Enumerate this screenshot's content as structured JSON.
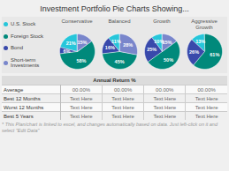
{
  "title": "Investment Portfolio Pie Charts Showing...",
  "series": [
    {
      "name": "U.S. Stock",
      "color": "#26c6da"
    },
    {
      "name": "Foreign Stock",
      "color": "#00897b"
    },
    {
      "name": "Bond",
      "color": "#3949ab"
    },
    {
      "name": "Short-term\nInvestments",
      "color": "#7986cb"
    }
  ],
  "chart_data": [
    {
      "type": "pie",
      "title": "Conservative",
      "categories": [
        "U.S. Stock",
        "Bond",
        "Foreign Stock",
        "Short-term\nInvestments"
      ],
      "values": [
        21,
        6,
        58,
        15
      ],
      "value_labels": [
        "21%",
        "6%",
        "58%",
        "15%"
      ],
      "colors": [
        "#26c6da",
        "#3949ab",
        "#00897b",
        "#7986cb"
      ],
      "data_labels": true
    },
    {
      "type": "pie",
      "title": "Balanced",
      "categories": [
        "U.S. Stock",
        "Bond",
        "Foreign Stock",
        "Short-term\nInvestments"
      ],
      "values": [
        11,
        16,
        45,
        28
      ],
      "value_labels": [
        "11%",
        "16%",
        "45%",
        "28%"
      ],
      "colors": [
        "#26c6da",
        "#3949ab",
        "#00897b",
        "#7986cb"
      ],
      "data_labels": true
    },
    {
      "type": "pie",
      "title": "Growth",
      "categories": [
        "U.S. Stock",
        "Bond",
        "Foreign Stock",
        "Short-term\nInvestments"
      ],
      "values": [
        10,
        25,
        50,
        15
      ],
      "value_labels": [
        "10%",
        "25%",
        "50%",
        "15%"
      ],
      "colors": [
        "#26c6da",
        "#3949ab",
        "#00897b",
        "#7986cb"
      ],
      "data_labels": true
    },
    {
      "type": "pie",
      "title": "Aggressive\nGrowth",
      "categories": [
        "U.S. Stock",
        "Bond",
        "Foreign Stock"
      ],
      "values": [
        13,
        26,
        61
      ],
      "value_labels": [
        "13%",
        "26%",
        "61%"
      ],
      "colors": [
        "#26c6da",
        "#3949ab",
        "#00897b"
      ],
      "data_labels": true
    }
  ],
  "table": {
    "title": "Annual Return %",
    "rows": [
      "Average",
      "Best 12 Months",
      "Worst 12 Months",
      "Best 5 Years"
    ],
    "cells": [
      [
        "00.00%",
        "00.00%",
        "00.00%",
        "00.00%"
      ],
      [
        "Text Here",
        "Text Here",
        "Text Here",
        "Text Here"
      ],
      [
        "Text Here",
        "Text Here",
        "Text Here",
        "Text Here"
      ],
      [
        "Text Here",
        "Text Here",
        "Text Here",
        "Text Here"
      ]
    ]
  },
  "annotations": [
    "* This Plan/chart is linked to excel, and changes automatically based on data. Just left-click on it and select \"Edit Data\""
  ]
}
